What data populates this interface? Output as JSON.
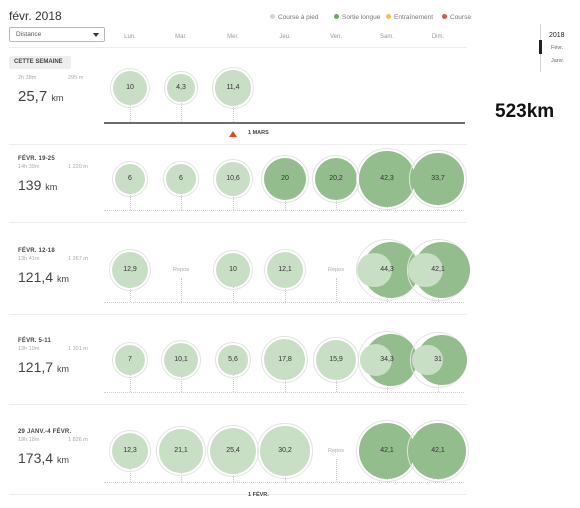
{
  "header": {
    "title": "févr. 2018",
    "metric_select": "Distance"
  },
  "legend": [
    {
      "label": "Course à pied",
      "color": "#d3d3d3",
      "left": 0
    },
    {
      "label": "Sortie longue",
      "color": "#6da863",
      "left": 64
    },
    {
      "label": "Entraînement",
      "color": "#f2c14e",
      "left": 116
    },
    {
      "label": "Course",
      "color": "#e0524a",
      "left": 172
    }
  ],
  "days": [
    "Lun.",
    "Mar.",
    "Mer.",
    "Jeu.",
    "Ven.",
    "Sam.",
    "Dim."
  ],
  "year_nav": {
    "year": "2018",
    "months": [
      "Févr.",
      "Janv."
    ]
  },
  "total": "523km",
  "markers": {
    "mars": "1 MARS",
    "fevr": "1 FÉVR."
  },
  "weeks": [
    {
      "label": "CETTE SEMAINE",
      "badge": true,
      "time": "2h 38m",
      "elev": "295 m",
      "dist_num": "25,7",
      "dist_unit": "km",
      "days": [
        {
          "val": "10",
          "type": "light",
          "km": 10
        },
        {
          "val": "4,3",
          "type": "light",
          "km": 4.3
        },
        {
          "val": "11,4",
          "type": "light",
          "km": 11.4
        },
        null,
        null,
        null,
        null
      ]
    },
    {
      "label": "FÉVR. 19-25",
      "badge": false,
      "time": "14h 39m",
      "elev": "1 220 m",
      "dist_num": "139",
      "dist_unit": "km",
      "days": [
        {
          "val": "6",
          "type": "light",
          "km": 6
        },
        {
          "val": "6",
          "type": "light",
          "km": 6
        },
        {
          "val": "10,6",
          "type": "light",
          "km": 10.6
        },
        {
          "val": "20",
          "type": "dark",
          "km": 20
        },
        {
          "val": "20,2",
          "type": "dark",
          "km": 20.2
        },
        {
          "val": "42,3",
          "type": "dark",
          "km": 42.3
        },
        {
          "val": "33,7",
          "type": "dark",
          "km": 33.7
        }
      ]
    },
    {
      "label": "FÉVR. 12-18",
      "badge": false,
      "time": "13h 41m",
      "elev": "1 267 m",
      "dist_num": "121,4",
      "dist_unit": "km",
      "days": [
        {
          "val": "12,9",
          "type": "light",
          "km": 12.9
        },
        {
          "val": "Repos",
          "type": "rest"
        },
        {
          "val": "10",
          "type": "light",
          "km": 10
        },
        {
          "val": "12,1",
          "type": "light",
          "km": 12.1
        },
        {
          "val": "Repos",
          "type": "rest"
        },
        {
          "val": "44,3",
          "type": "mixed",
          "km": 44.3
        },
        {
          "val": "42,1",
          "type": "mixed",
          "km": 42.1
        }
      ]
    },
    {
      "label": "FÉVR. 5-11",
      "badge": false,
      "time": "13h 10m",
      "elev": "1 301 m",
      "dist_num": "121,7",
      "dist_unit": "km",
      "days": [
        {
          "val": "7",
          "type": "light",
          "km": 7
        },
        {
          "val": "10,1",
          "type": "light",
          "km": 10.1
        },
        {
          "val": "5,6",
          "type": "light",
          "km": 5.6
        },
        {
          "val": "17,8",
          "type": "light",
          "km": 17.8
        },
        {
          "val": "15,9",
          "type": "light",
          "km": 15.9
        },
        {
          "val": "34,3",
          "type": "mixed",
          "km": 34.3
        },
        {
          "val": "31",
          "type": "mixed",
          "km": 31
        }
      ]
    },
    {
      "label": "29 JANV.-4 FÉVR.",
      "badge": false,
      "time": "19h 18m",
      "elev": "1 826 m",
      "dist_num": "173,4",
      "dist_unit": "km",
      "days": [
        {
          "val": "12,3",
          "type": "light",
          "km": 12.3
        },
        {
          "val": "21,1",
          "type": "light",
          "km": 21.1
        },
        {
          "val": "25,4",
          "type": "light",
          "km": 25.4
        },
        {
          "val": "30,2",
          "type": "light",
          "km": 30.2
        },
        {
          "val": "Repos",
          "type": "rest"
        },
        {
          "val": "42,1",
          "type": "dark",
          "km": 42.1
        },
        {
          "val": "42,1",
          "type": "dark",
          "km": 42.1
        }
      ]
    }
  ]
}
